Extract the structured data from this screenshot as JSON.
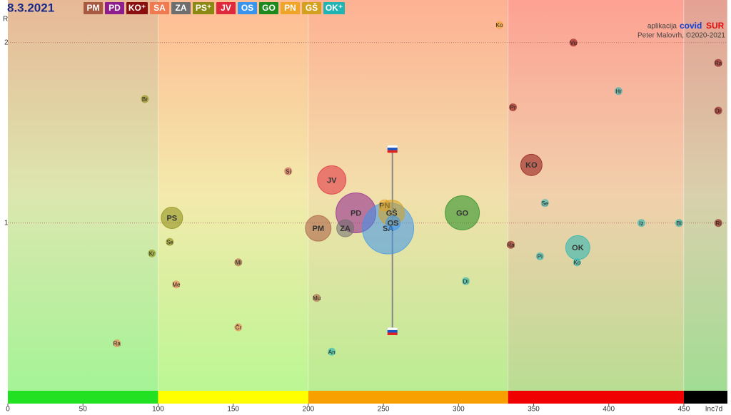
{
  "chart_data": {
    "type": "bubble",
    "title": "8.3.2021",
    "credit_prefix": "aplikacija",
    "app_name_a": "covid",
    "app_name_b": "SUR",
    "author": "Peter Malovrh, ©2020-2021",
    "x_label": "Inc7d",
    "y_label": "R",
    "xlim": [
      0,
      479
    ],
    "xticks": [
      0,
      50,
      100,
      150,
      200,
      250,
      300,
      350,
      400,
      450
    ],
    "ylim": [
      0.525,
      2.23
    ],
    "yticks": [
      1,
      2
    ],
    "log_y": true,
    "grid": true,
    "legend": [
      {
        "name": "PM",
        "color": "#a85a40"
      },
      {
        "name": "PD",
        "color": "#8e1e8e"
      },
      {
        "name": "KO⁺",
        "color": "#8b0f0f"
      },
      {
        "name": "SA",
        "color": "#f07a50"
      },
      {
        "name": "ZA",
        "color": "#6e6e6e"
      },
      {
        "name": "PS⁺",
        "color": "#8a8a12"
      },
      {
        "name": "JV",
        "color": "#e0283c"
      },
      {
        "name": "OS",
        "color": "#3a94ee"
      },
      {
        "name": "GO",
        "color": "#1e8a1e"
      },
      {
        "name": "PN",
        "color": "#f0a428"
      },
      {
        "name": "GŠ",
        "color": "#d4a020"
      },
      {
        "name": "OK⁺",
        "color": "#22b4b4"
      }
    ],
    "zones": [
      {
        "from": 0,
        "to": 100,
        "color": "#22e022"
      },
      {
        "from": 100,
        "to": 200,
        "color": "#ffff00"
      },
      {
        "from": 200,
        "to": 333,
        "color": "#f8a000"
      },
      {
        "from": 333,
        "to": 450,
        "color": "#f00000"
      },
      {
        "from": 450,
        "to": 479,
        "color": "#000000"
      }
    ],
    "national": {
      "x": [
        256,
        256
      ],
      "y": [
        0.66,
        1.33
      ]
    },
    "bubbles": [
      {
        "label": "JV",
        "color": "#e0283c",
        "x": 215.6,
        "y": 1.18,
        "size": 20
      },
      {
        "label": "PD",
        "color": "#8e1e8e",
        "x": 231.7,
        "y": 1.04,
        "size": 28
      },
      {
        "label": "SA",
        "color": "#3a94ee",
        "x": 253.1,
        "y": 0.98,
        "size": 36
      },
      {
        "label": "PN",
        "color": "#f0a428",
        "x": 250.8,
        "y": 1.07,
        "size": 8
      },
      {
        "label": "GŠ",
        "color": "#d4a020",
        "x": 255.5,
        "y": 1.04,
        "size": 18
      },
      {
        "label": "OS",
        "color": "#3a94ee",
        "x": 256.4,
        "y": 1.0,
        "size": 10
      },
      {
        "label": "PM",
        "color": "#a85a40",
        "x": 206.6,
        "y": 0.98,
        "size": 18
      },
      {
        "label": "ZA",
        "color": "#6e6e6e",
        "x": 224.6,
        "y": 0.98,
        "size": 12
      },
      {
        "label": "GO",
        "color": "#1e8a1e",
        "x": 302.5,
        "y": 1.04,
        "size": 24
      },
      {
        "label": "PS",
        "color": "#8a8a12",
        "x": 109.2,
        "y": 1.02,
        "size": 15
      },
      {
        "label": "KO",
        "color": "#8b0f0f",
        "x": 348.5,
        "y": 1.25,
        "size": 15
      },
      {
        "label": "OK",
        "color": "#22b4b4",
        "x": 379.4,
        "y": 0.91,
        "size": 17
      }
    ],
    "points": {
      "labels": [
        "Br",
        "Si",
        "Se",
        "Kr",
        "Mi",
        "Me",
        "Mu",
        "Čr",
        "Ra",
        "An",
        "Ko",
        "Vu",
        "Ra",
        "Hr",
        "Pr",
        "Dr",
        "Se",
        "Iz",
        "Bl",
        "Ri",
        "Ra",
        "Pi",
        "Ko",
        "Di"
      ],
      "x": [
        91.2,
        186.6,
        107.8,
        95.9,
        153.4,
        112.1,
        205.6,
        153.4,
        72.6,
        215.6,
        327.2,
        376.5,
        472.9,
        406.5,
        336.2,
        472.9,
        357.5,
        421.7,
        446.8,
        472.9,
        334.8,
        354.2,
        378.9,
        304.8
      ],
      "y": [
        1.61,
        1.22,
        0.93,
        0.89,
        0.86,
        0.79,
        0.75,
        0.67,
        0.63,
        0.61,
        2.14,
        2.0,
        1.85,
        1.66,
        1.56,
        1.54,
        1.08,
        1.0,
        1.0,
        1.0,
        0.92,
        0.88,
        0.86,
        0.8
      ],
      "colors": [
        "#8a8a12",
        "#c05050",
        "#8a8a12",
        "#8a8a12",
        "#a85a40",
        "#f07a50",
        "#a85a40",
        "#f07a50",
        "#f07a50",
        "#22b4b4",
        "#f0a428",
        "#8b0f0f",
        "#8b0f0f",
        "#22b4b4",
        "#8b0f0f",
        "#8b0f0f",
        "#22b4b4",
        "#22b4b4",
        "#22b4b4",
        "#8b0f0f",
        "#8b0f0f",
        "#22b4b4",
        "#22b4b4",
        "#22b4b4"
      ]
    }
  }
}
